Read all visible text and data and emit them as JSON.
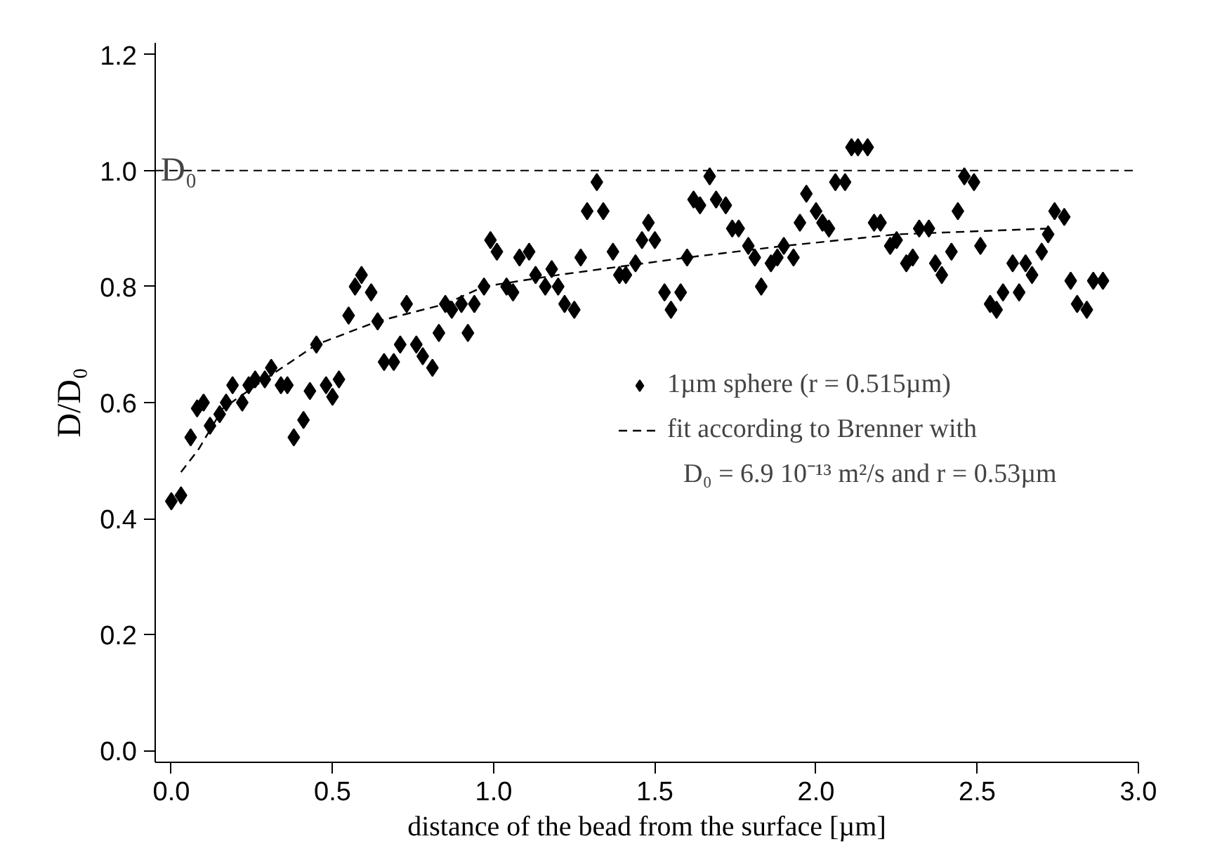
{
  "chart_data": {
    "type": "scatter",
    "xlabel": "distance of the bead from the surface [µm]",
    "ylabel": "D/D₀",
    "xlim": [
      -0.05,
      3.0
    ],
    "ylim": [
      -0.02,
      1.22
    ],
    "xticks": [
      {
        "value": 0,
        "label": "0.0"
      },
      0.5,
      {
        "value": 1,
        "label": "1.0"
      },
      1.5,
      {
        "value": 2,
        "label": "2.0"
      },
      2.5,
      {
        "value": 3,
        "label": "3.0"
      }
    ],
    "yticks": [
      {
        "value": 0,
        "label": "0.0"
      },
      0.2,
      0.4,
      0.6,
      0.8,
      {
        "value": 1,
        "label": "1.0"
      },
      1.2
    ],
    "annotations": [
      "D₀ = 6.9 10⁻¹³ m²/s  and r = 0.53µm"
    ],
    "grid": false,
    "legend": "right",
    "marker": "diamond",
    "ref_lines": [
      {
        "axis": "y",
        "value": 1.0,
        "label": "D₀",
        "line_style": "dashed",
        "color": "#000000"
      }
    ],
    "series": [
      {
        "name": "1µm sphere (r = 0.515µm)",
        "color": "#000000",
        "x": [
          0.0,
          0.03,
          0.06,
          0.08,
          0.1,
          0.12,
          0.15,
          0.17,
          0.19,
          0.22,
          0.24,
          0.26,
          0.29,
          0.31,
          0.34,
          0.36,
          0.38,
          0.41,
          0.43,
          0.45,
          0.48,
          0.5,
          0.52,
          0.55,
          0.57,
          0.59,
          0.62,
          0.64,
          0.66,
          0.69,
          0.71,
          0.73,
          0.76,
          0.78,
          0.81,
          0.83,
          0.85,
          0.87,
          0.9,
          0.92,
          0.94,
          0.97,
          0.99,
          1.01,
          1.04,
          1.06,
          1.08,
          1.11,
          1.13,
          1.16,
          1.18,
          1.2,
          1.22,
          1.25,
          1.27,
          1.29,
          1.32,
          1.34,
          1.37,
          1.39,
          1.41,
          1.44,
          1.46,
          1.48,
          1.5,
          1.53,
          1.55,
          1.58,
          1.6,
          1.62,
          1.64,
          1.67,
          1.69,
          1.72,
          1.74,
          1.76,
          1.79,
          1.81,
          1.83,
          1.86,
          1.88,
          1.9,
          1.93,
          1.95,
          1.97,
          2.0,
          2.02,
          2.04,
          2.06,
          2.09,
          2.11,
          2.13,
          2.16,
          2.18,
          2.2,
          2.23,
          2.25,
          2.28,
          2.3,
          2.32,
          2.35,
          2.37,
          2.39,
          2.42,
          2.44,
          2.46,
          2.49,
          2.51,
          2.54,
          2.56,
          2.58,
          2.61,
          2.63,
          2.65,
          2.67,
          2.7,
          2.72,
          2.74,
          2.77,
          2.79,
          2.81,
          2.84,
          2.86,
          2.89
        ],
        "values": [
          0.43,
          0.44,
          0.54,
          0.59,
          0.6,
          0.56,
          0.58,
          0.6,
          0.63,
          0.6,
          0.63,
          0.64,
          0.64,
          0.66,
          0.63,
          0.63,
          0.54,
          0.57,
          0.62,
          0.7,
          0.63,
          0.61,
          0.64,
          0.75,
          0.8,
          0.82,
          0.79,
          0.74,
          0.67,
          0.67,
          0.7,
          0.77,
          0.7,
          0.68,
          0.66,
          0.72,
          0.77,
          0.76,
          0.77,
          0.72,
          0.77,
          0.8,
          0.88,
          0.86,
          0.8,
          0.79,
          0.85,
          0.86,
          0.82,
          0.8,
          0.83,
          0.8,
          0.77,
          0.76,
          0.85,
          0.93,
          0.98,
          0.93,
          0.86,
          0.82,
          0.82,
          0.84,
          0.88,
          0.91,
          0.88,
          0.79,
          0.76,
          0.79,
          0.85,
          0.95,
          0.94,
          0.99,
          0.95,
          0.94,
          0.9,
          0.9,
          0.87,
          0.85,
          0.8,
          0.84,
          0.85,
          0.87,
          0.85,
          0.91,
          0.96,
          0.93,
          0.91,
          0.9,
          0.98,
          0.98,
          1.04,
          1.04,
          1.04,
          0.91,
          0.91,
          0.87,
          0.88,
          0.84,
          0.85,
          0.9,
          0.9,
          0.84,
          0.82,
          0.86,
          0.93,
          0.99,
          0.98,
          0.87,
          0.77,
          0.76,
          0.79,
          0.84,
          0.79,
          0.84,
          0.82,
          0.86,
          0.89,
          0.93,
          0.92,
          0.81,
          0.77,
          0.76,
          0.81,
          0.81
        ]
      },
      {
        "name": "fit according to Brenner with",
        "color": "#000000",
        "type": "line",
        "line_style": "dashed",
        "marker": "none",
        "x": [
          0.03,
          0.085,
          0.16,
          0.29,
          0.45,
          0.64,
          0.85,
          0.97,
          1.2,
          1.6,
          1.9,
          2.25,
          2.72
        ],
        "values": [
          0.48,
          0.52,
          0.59,
          0.64,
          0.7,
          0.74,
          0.77,
          0.8,
          0.82,
          0.85,
          0.87,
          0.89,
          0.9
        ]
      }
    ]
  }
}
